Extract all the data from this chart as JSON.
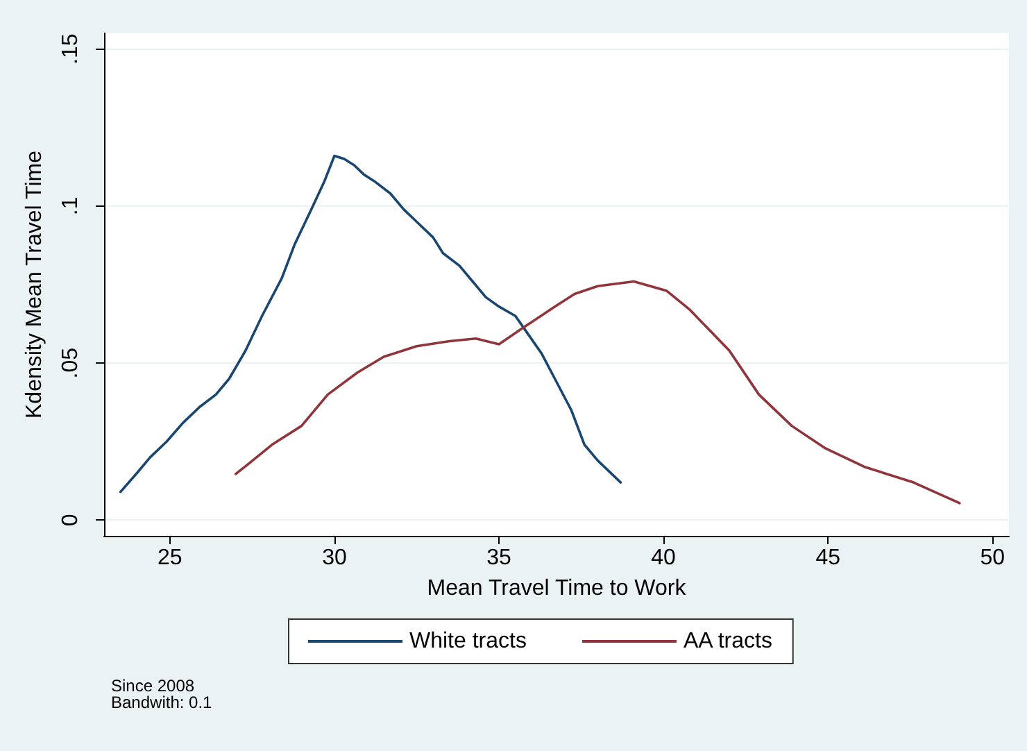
{
  "chart_data": {
    "type": "line",
    "xlabel": "Mean Travel Time to Work",
    "ylabel": "Kdensity Mean Travel Time",
    "annotations": [
      "Since 2008",
      "Bandwith: 0.1"
    ],
    "xlim": [
      23,
      50.5
    ],
    "xticks": [
      25,
      30,
      35,
      40,
      45,
      50
    ],
    "ylim": [
      -0.005,
      0.155
    ],
    "yticks": [
      {
        "value": 0,
        "label": "0"
      },
      {
        "value": 0.05,
        "label": ".05"
      },
      {
        "value": 0.1,
        "label": ".1"
      },
      {
        "value": 0.15,
        "label": ".15"
      }
    ],
    "grid": "y",
    "legend": "bottom",
    "marker": "none",
    "line_style": "solid",
    "series": [
      {
        "name": "White tracts",
        "color": "#1a476f",
        "x": [
          23.5,
          24.0,
          24.4,
          24.9,
          25.4,
          25.9,
          26.4,
          26.8,
          27.3,
          27.8,
          28.4,
          28.8,
          29.3,
          29.7,
          30.0,
          30.3,
          30.6,
          30.9,
          31.2,
          31.7,
          32.1,
          32.5,
          33.0,
          33.3,
          33.8,
          34.2,
          34.6,
          35.0,
          35.5,
          35.9,
          36.3,
          36.7,
          37.2,
          37.6,
          38.0,
          38.7
        ],
        "values": [
          0.009,
          0.015,
          0.02,
          0.025,
          0.031,
          0.036,
          0.04,
          0.045,
          0.054,
          0.065,
          0.077,
          0.088,
          0.099,
          0.108,
          0.116,
          0.115,
          0.113,
          0.11,
          0.108,
          0.104,
          0.099,
          0.095,
          0.09,
          0.085,
          0.081,
          0.076,
          0.071,
          0.068,
          0.065,
          0.059,
          0.053,
          0.045,
          0.035,
          0.024,
          0.019,
          0.012
        ]
      },
      {
        "name": "AA tracts",
        "color": "#90353b",
        "x": [
          27.0,
          27.4,
          28.1,
          29.0,
          29.8,
          30.7,
          31.5,
          32.5,
          33.5,
          34.3,
          35.0,
          35.7,
          36.7,
          37.3,
          38.0,
          39.1,
          40.1,
          40.8,
          42.0,
          42.9,
          43.9,
          44.9,
          46.1,
          47.6,
          49.0
        ],
        "values": [
          0.0147,
          0.018,
          0.024,
          0.03,
          0.04,
          0.047,
          0.052,
          0.0554,
          0.057,
          0.0578,
          0.056,
          0.061,
          0.068,
          0.072,
          0.0745,
          0.076,
          0.073,
          0.067,
          0.054,
          0.04,
          0.03,
          0.023,
          0.017,
          0.012,
          0.0054
        ]
      }
    ]
  }
}
